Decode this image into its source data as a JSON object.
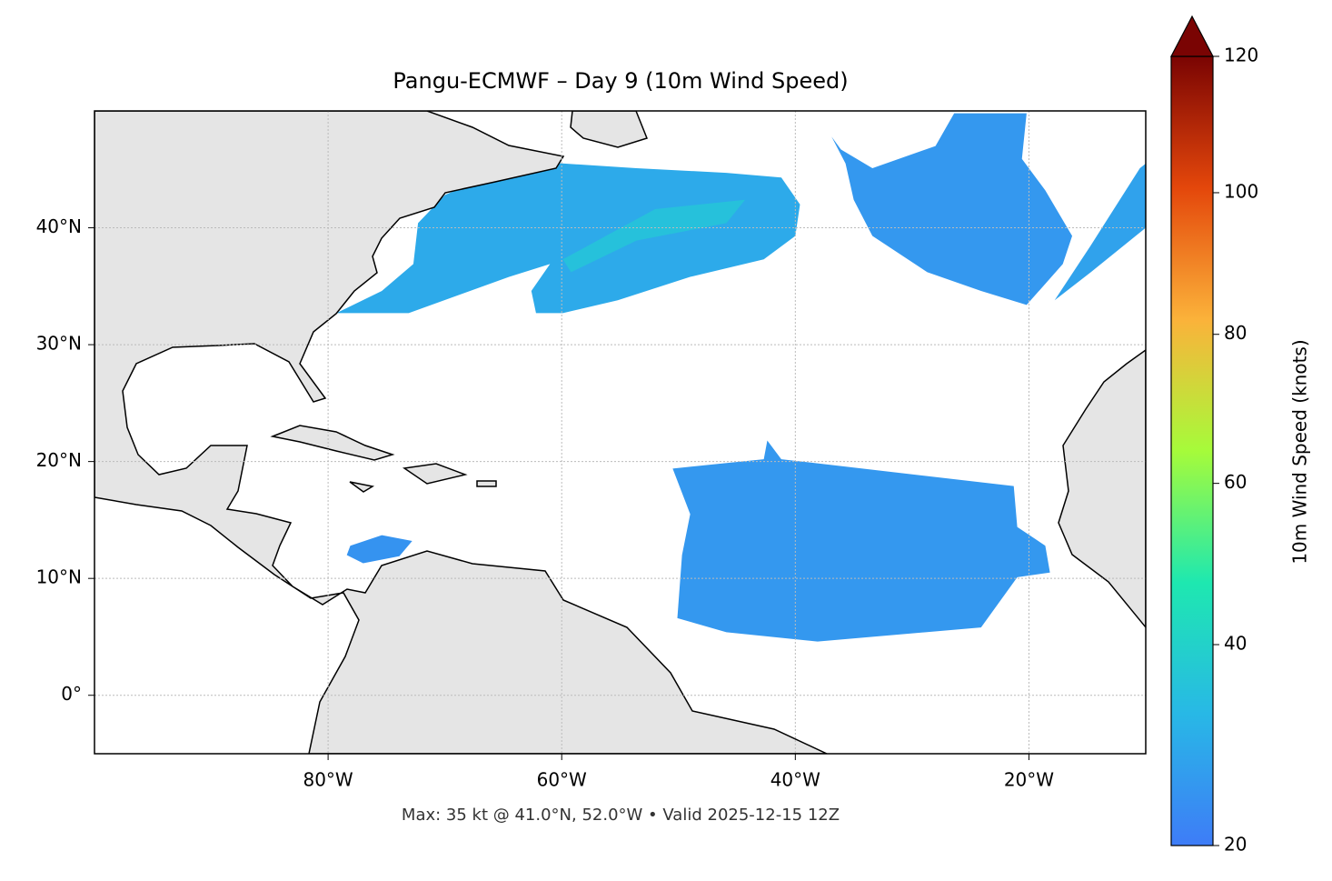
{
  "chart_data": {
    "type": "filled_map",
    "title": "Pangu-ECMWF – Day 9 (10m Wind Speed)",
    "footer": "Max: 35 kt @ 41.0°N, 52.0°W • Valid 2025-12-15 12Z",
    "xlim": [
      -100,
      -10
    ],
    "ylim": [
      -5,
      50
    ],
    "xticks": [
      {
        "value": -80,
        "label": "80°W"
      },
      {
        "value": -60,
        "label": "60°W"
      },
      {
        "value": -40,
        "label": "40°W"
      },
      {
        "value": -20,
        "label": "20°W"
      }
    ],
    "yticks": [
      {
        "value": 0,
        "label": "0°"
      },
      {
        "value": 10,
        "label": "10°N"
      },
      {
        "value": 20,
        "label": "20°N"
      },
      {
        "value": 30,
        "label": "30°N"
      },
      {
        "value": 40,
        "label": "40°N"
      }
    ],
    "grid": true,
    "colorbar": {
      "label": "10m Wind Speed (knots)",
      "lim": [
        20,
        120
      ],
      "ticks": [
        20,
        40,
        60,
        80,
        100,
        120
      ],
      "gamma": 0.85,
      "extend": "max",
      "colormap": [
        "#3e7cf7",
        "#28b8e6",
        "#1ee8b0",
        "#a6fb3a",
        "#fbb23a",
        "#e4470b",
        "#7a0403"
      ]
    },
    "regions": [
      {
        "lon": [
          -79.3,
          -75.4,
          -72.7,
          -72.3,
          -70.0,
          -65.7,
          -61.4,
          -53.6,
          -45.9,
          -41.2,
          -39.6,
          -40.0,
          -42.7,
          -49.0,
          -55.2,
          -59.9,
          -62.2,
          -62.6,
          -61.0,
          -64.5,
          -73.1
        ],
        "lat": [
          32.7,
          34.6,
          36.9,
          40.4,
          42.8,
          44.7,
          45.6,
          45.1,
          44.7,
          44.3,
          42.0,
          39.3,
          37.3,
          35.8,
          33.8,
          32.7,
          32.7,
          34.6,
          36.9,
          35.8,
          32.7
        ],
        "speed": 29
      },
      {
        "lon": [
          -59.9,
          -52.0,
          -44.3,
          -45.9,
          -53.6,
          -59.2
        ],
        "lat": [
          37.3,
          41.6,
          42.4,
          40.4,
          38.9,
          36.2
        ],
        "speed": 35
      },
      {
        "lon": [
          -36.9,
          -36.1,
          -33.4,
          -28.0,
          -26.4,
          -20.2,
          -20.6,
          -18.6,
          -16.3,
          -17.1,
          -20.2,
          -24.1,
          -28.7,
          -33.4,
          -35.0,
          -35.7
        ],
        "lat": [
          47.8,
          46.7,
          45.1,
          47.0,
          49.8,
          49.8,
          45.9,
          43.2,
          39.3,
          36.9,
          33.4,
          34.6,
          36.2,
          39.3,
          42.4,
          45.5
        ],
        "speed": 25
      },
      {
        "lon": [
          -17.8,
          -14.7,
          -10.5,
          -10.0,
          -10.0,
          -14.7
        ],
        "lat": [
          33.8,
          38.5,
          45.1,
          45.5,
          40.0,
          36.2
        ],
        "speed": 27
      },
      {
        "lon": [
          -50.5,
          -42.7,
          -42.4,
          -41.2,
          -21.3,
          -21.0,
          -18.6,
          -18.2,
          -21.0,
          -24.1,
          -38.1,
          -45.9,
          -50.1,
          -49.7,
          -49.0
        ],
        "lat": [
          19.4,
          20.2,
          21.8,
          20.2,
          17.9,
          14.4,
          12.8,
          10.5,
          10.1,
          5.8,
          4.6,
          5.4,
          6.6,
          12.0,
          15.5
        ],
        "speed": 25
      },
      {
        "lon": [
          -78.1,
          -75.4,
          -72.8,
          -73.9,
          -77.0,
          -78.4
        ],
        "lat": [
          12.8,
          13.7,
          13.2,
          11.9,
          11.3,
          12.0
        ],
        "speed": 24
      }
    ]
  }
}
